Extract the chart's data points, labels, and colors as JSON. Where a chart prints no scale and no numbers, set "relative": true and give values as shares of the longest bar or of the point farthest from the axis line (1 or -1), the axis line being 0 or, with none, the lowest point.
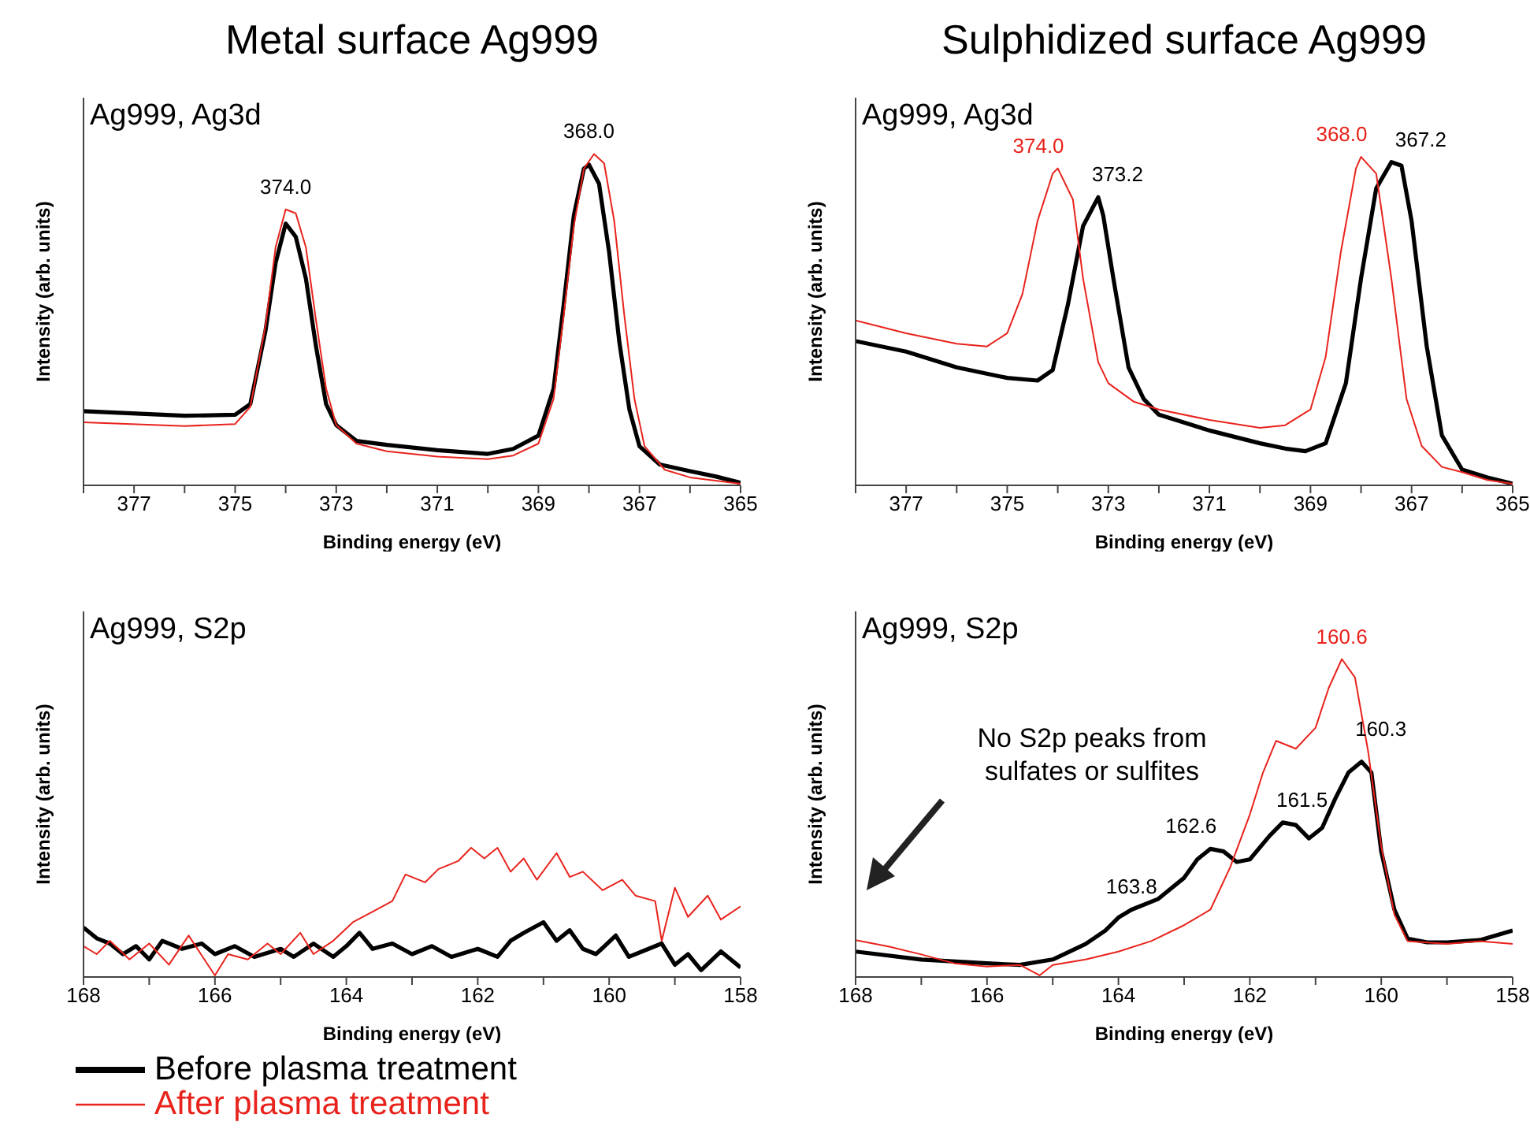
{
  "chart_data": [
    {
      "type": "line",
      "title": "Metal surface Ag999",
      "subtitle": "Ag999, Ag3d",
      "xlabel": "Binding energy (eV)",
      "ylabel": "Intensity (arb. units)",
      "relative": true,
      "xlim": [
        378,
        365
      ],
      "xticks": [
        {
          "value": 378,
          "label": null
        },
        377,
        {
          "value": 376,
          "label": null
        },
        375,
        {
          "value": 374,
          "label": null
        },
        373,
        {
          "value": 372,
          "label": null
        },
        371,
        {
          "value": 370,
          "label": null
        },
        369,
        {
          "value": 368,
          "label": null
        },
        367,
        {
          "value": 366,
          "label": null
        },
        365
      ],
      "annotations": [
        {
          "text": "374.0",
          "x": 374.0,
          "y": 0.79
        },
        {
          "text": "368.0",
          "x": 368.0,
          "y": 0.968
        }
      ],
      "series": [
        {
          "color": "#000000",
          "x": [
            378,
            376,
            375,
            374.7,
            374.4,
            374.2,
            374.0,
            373.8,
            373.6,
            373.4,
            373.2,
            373.0,
            372.6,
            372,
            371,
            370,
            369.5,
            369,
            368.7,
            368.5,
            368.3,
            368.1,
            368.0,
            367.8,
            367.6,
            367.4,
            367.2,
            367.0,
            366.6,
            366,
            365.5,
            365
          ],
          "values": [
            0.224,
            0.21,
            0.213,
            0.245,
            0.466,
            0.671,
            0.79,
            0.75,
            0.624,
            0.419,
            0.245,
            0.182,
            0.134,
            0.122,
            0.106,
            0.095,
            0.11,
            0.15,
            0.292,
            0.545,
            0.814,
            0.956,
            0.968,
            0.91,
            0.703,
            0.434,
            0.229,
            0.118,
            0.063,
            0.043,
            0.027,
            0.008
          ]
        },
        {
          "color": "#e8231c",
          "x": [
            378,
            376,
            375,
            374.7,
            374.4,
            374.2,
            374.0,
            373.8,
            373.6,
            373.4,
            373.2,
            373.0,
            372.6,
            372,
            371,
            370,
            369.5,
            369,
            368.7,
            368.5,
            368.3,
            368.1,
            367.9,
            367.7,
            367.5,
            367.3,
            367.1,
            366.9,
            366.5,
            366,
            365
          ],
          "values": [
            0.19,
            0.179,
            0.185,
            0.237,
            0.482,
            0.718,
            0.833,
            0.821,
            0.718,
            0.498,
            0.292,
            0.182,
            0.126,
            0.103,
            0.087,
            0.079,
            0.09,
            0.126,
            0.261,
            0.513,
            0.782,
            0.956,
            1,
            0.972,
            0.798,
            0.513,
            0.261,
            0.118,
            0.047,
            0.024,
            0.005
          ]
        }
      ]
    },
    {
      "type": "line",
      "title": "Sulphidized surface Ag999",
      "subtitle": "Ag999, Ag3d",
      "xlabel": "Binding energy (eV)",
      "ylabel": "Intensity (arb. units)",
      "relative": true,
      "xlim": [
        378,
        365
      ],
      "xticks": [
        {
          "value": 378,
          "label": null
        },
        377,
        {
          "value": 376,
          "label": null
        },
        375,
        {
          "value": 374,
          "label": null
        },
        373,
        {
          "value": 372,
          "label": null
        },
        371,
        {
          "value": 370,
          "label": null
        },
        369,
        {
          "value": 368,
          "label": null
        },
        367,
        {
          "value": 366,
          "label": null
        },
        365
      ],
      "annotations": [
        {
          "text": "374.0",
          "x": 374.0,
          "y": 0.965
        },
        {
          "text": "373.2",
          "x": 373.2,
          "y": 0.877
        },
        {
          "text": "368.0",
          "x": 368.0,
          "y": 1
        },
        {
          "text": "367.2",
          "x": 367.2,
          "y": 0.973
        }
      ],
      "series": [
        {
          "color": "#000000",
          "x": [
            378,
            377,
            376,
            375,
            374.4,
            374.1,
            373.8,
            373.5,
            373.2,
            373.1,
            372.9,
            372.6,
            372.3,
            372,
            371,
            370,
            369.5,
            369.1,
            368.7,
            368.3,
            368.0,
            367.7,
            367.4,
            367.2,
            367.0,
            366.7,
            366.4,
            366.0,
            365.5,
            365
          ],
          "values": [
            0.439,
            0.407,
            0.359,
            0.327,
            0.319,
            0.351,
            0.55,
            0.789,
            0.877,
            0.821,
            0.63,
            0.359,
            0.263,
            0.215,
            0.167,
            0.128,
            0.112,
            0.104,
            0.128,
            0.311,
            0.63,
            0.904,
            0.984,
            0.973,
            0.805,
            0.423,
            0.152,
            0.048,
            0.024,
            0.005
          ]
        },
        {
          "color": "#e8231c",
          "x": [
            378,
            377,
            376,
            375.4,
            375.0,
            374.7,
            374.4,
            374.1,
            374.0,
            373.7,
            373.5,
            373.2,
            373.0,
            372.5,
            372,
            371,
            370,
            369.5,
            369,
            368.7,
            368.4,
            368.1,
            368.0,
            367.7,
            367.4,
            367.1,
            366.8,
            366.4,
            366,
            365.5,
            365
          ],
          "values": [
            0.502,
            0.463,
            0.431,
            0.423,
            0.463,
            0.582,
            0.805,
            0.949,
            0.965,
            0.87,
            0.63,
            0.375,
            0.311,
            0.255,
            0.231,
            0.199,
            0.175,
            0.183,
            0.231,
            0.391,
            0.71,
            0.965,
            1,
            0.949,
            0.63,
            0.263,
            0.12,
            0.056,
            0.04,
            0.016,
            0.005
          ]
        }
      ]
    },
    {
      "type": "line",
      "title": "Ag999, S2p",
      "xlabel": "Binding energy (eV)",
      "ylabel": "Intensity (arb. units)",
      "relative": true,
      "legend": "bottom",
      "xlim": [
        168,
        158
      ],
      "xticks": [
        168,
        {
          "value": 167,
          "label": null
        },
        166,
        {
          "value": 165,
          "label": null
        },
        164,
        {
          "value": 163,
          "label": null
        },
        162,
        {
          "value": 161,
          "label": null
        },
        160,
        {
          "value": 159,
          "label": null
        },
        158
      ],
      "series": [
        {
          "name": "Before plasma treatment",
          "color": "#000000",
          "x": [
            168,
            167.8,
            167.6,
            167.4,
            167.2,
            167,
            166.8,
            166.5,
            166.2,
            166,
            165.7,
            165.4,
            165,
            164.8,
            164.5,
            164.2,
            164,
            163.8,
            163.6,
            163.3,
            163,
            162.7,
            162.4,
            162,
            161.7,
            161.5,
            161.3,
            161.0,
            160.8,
            160.6,
            160.4,
            160.2,
            159.9,
            159.7,
            159.4,
            159.2,
            159,
            158.8,
            158.6,
            158.3,
            158
          ],
          "values": [
            0.383,
            0.3,
            0.259,
            0.177,
            0.239,
            0.136,
            0.28,
            0.218,
            0.259,
            0.177,
            0.239,
            0.156,
            0.218,
            0.156,
            0.259,
            0.156,
            0.239,
            0.342,
            0.218,
            0.259,
            0.177,
            0.239,
            0.156,
            0.218,
            0.156,
            0.28,
            0.342,
            0.424,
            0.28,
            0.362,
            0.218,
            0.177,
            0.321,
            0.156,
            0.218,
            0.259,
            0.095,
            0.177,
            0.053,
            0.198,
            0.074
          ]
        },
        {
          "name": "After plasma treatment",
          "color": "#e8231c",
          "x": [
            168,
            167.8,
            167.6,
            167.3,
            167,
            166.7,
            166.4,
            166.0,
            165.8,
            165.5,
            165.2,
            165,
            164.7,
            164.5,
            164.2,
            163.9,
            163.6,
            163.3,
            163.1,
            162.8,
            162.6,
            162.3,
            162.1,
            161.9,
            161.7,
            161.5,
            161.3,
            161.1,
            160.8,
            160.6,
            160.4,
            160.1,
            159.8,
            159.6,
            159.3,
            159.2,
            159.0,
            158.8,
            158.5,
            158.3,
            158
          ],
          "values": [
            0.239,
            0.177,
            0.28,
            0.136,
            0.259,
            0.095,
            0.321,
            0.012,
            0.177,
            0.136,
            0.259,
            0.177,
            0.342,
            0.177,
            0.28,
            0.424,
            0.506,
            0.588,
            0.794,
            0.733,
            0.835,
            0.897,
            1,
            0.918,
            1,
            0.815,
            0.918,
            0.753,
            0.959,
            0.774,
            0.815,
            0.671,
            0.753,
            0.63,
            0.588,
            0.28,
            0.691,
            0.465,
            0.63,
            0.444,
            0.547
          ]
        }
      ]
    },
    {
      "type": "line",
      "title": "Ag999, S2p",
      "xlabel": "Binding energy (eV)",
      "ylabel": "Intensity (arb. units)",
      "relative": true,
      "xlim": [
        168,
        158
      ],
      "xticks": [
        168,
        {
          "value": 167,
          "label": null
        },
        166,
        {
          "value": 165,
          "label": null
        },
        164,
        {
          "value": 163,
          "label": null
        },
        162,
        {
          "value": 161,
          "label": null
        },
        160,
        {
          "value": 159,
          "label": null
        },
        158
      ],
      "annotations": [
        "No S2p peaks from sulfates or sulfites",
        {
          "text": "163.8",
          "x": 163.8,
          "y": 0.212
        },
        {
          "text": "162.6",
          "x": 162.6,
          "y": 0.403
        },
        {
          "text": "161.5",
          "x": 161.5,
          "y": 0.486
        },
        {
          "text": "160.3",
          "x": 160.3,
          "y": 0.677
        },
        {
          "text": "160.6",
          "x": 160.6,
          "y": 1
        }
      ],
      "series": [
        {
          "color": "#000000",
          "x": [
            168,
            167,
            166,
            165.5,
            165,
            164.5,
            164.2,
            164.0,
            163.8,
            163.4,
            163.0,
            162.8,
            162.6,
            162.4,
            162.2,
            162.0,
            161.7,
            161.5,
            161.3,
            161.1,
            160.9,
            160.7,
            160.5,
            160.3,
            160.15,
            160.0,
            159.8,
            159.6,
            159.3,
            159,
            158.5,
            158
          ],
          "values": [
            0.08,
            0.055,
            0.043,
            0.038,
            0.055,
            0.104,
            0.146,
            0.187,
            0.212,
            0.245,
            0.312,
            0.37,
            0.403,
            0.395,
            0.362,
            0.37,
            0.444,
            0.486,
            0.478,
            0.436,
            0.469,
            0.561,
            0.643,
            0.677,
            0.643,
            0.395,
            0.212,
            0.121,
            0.109,
            0.109,
            0.116,
            0.146
          ]
        },
        {
          "color": "#e8231c",
          "x": [
            168,
            167.5,
            167,
            166.5,
            166,
            165.5,
            165.2,
            165,
            164.5,
            164,
            163.5,
            163,
            162.6,
            162.3,
            162.0,
            161.8,
            161.6,
            161.3,
            161.0,
            160.8,
            160.6,
            160.4,
            160.2,
            160.0,
            159.8,
            159.6,
            159,
            158.5,
            158
          ],
          "values": [
            0.116,
            0.096,
            0.071,
            0.043,
            0.033,
            0.038,
            0.005,
            0.038,
            0.055,
            0.08,
            0.113,
            0.163,
            0.212,
            0.345,
            0.511,
            0.643,
            0.743,
            0.718,
            0.784,
            0.909,
            1,
            0.942,
            0.71,
            0.411,
            0.196,
            0.113,
            0.104,
            0.113,
            0.104
          ]
        }
      ]
    }
  ]
}
